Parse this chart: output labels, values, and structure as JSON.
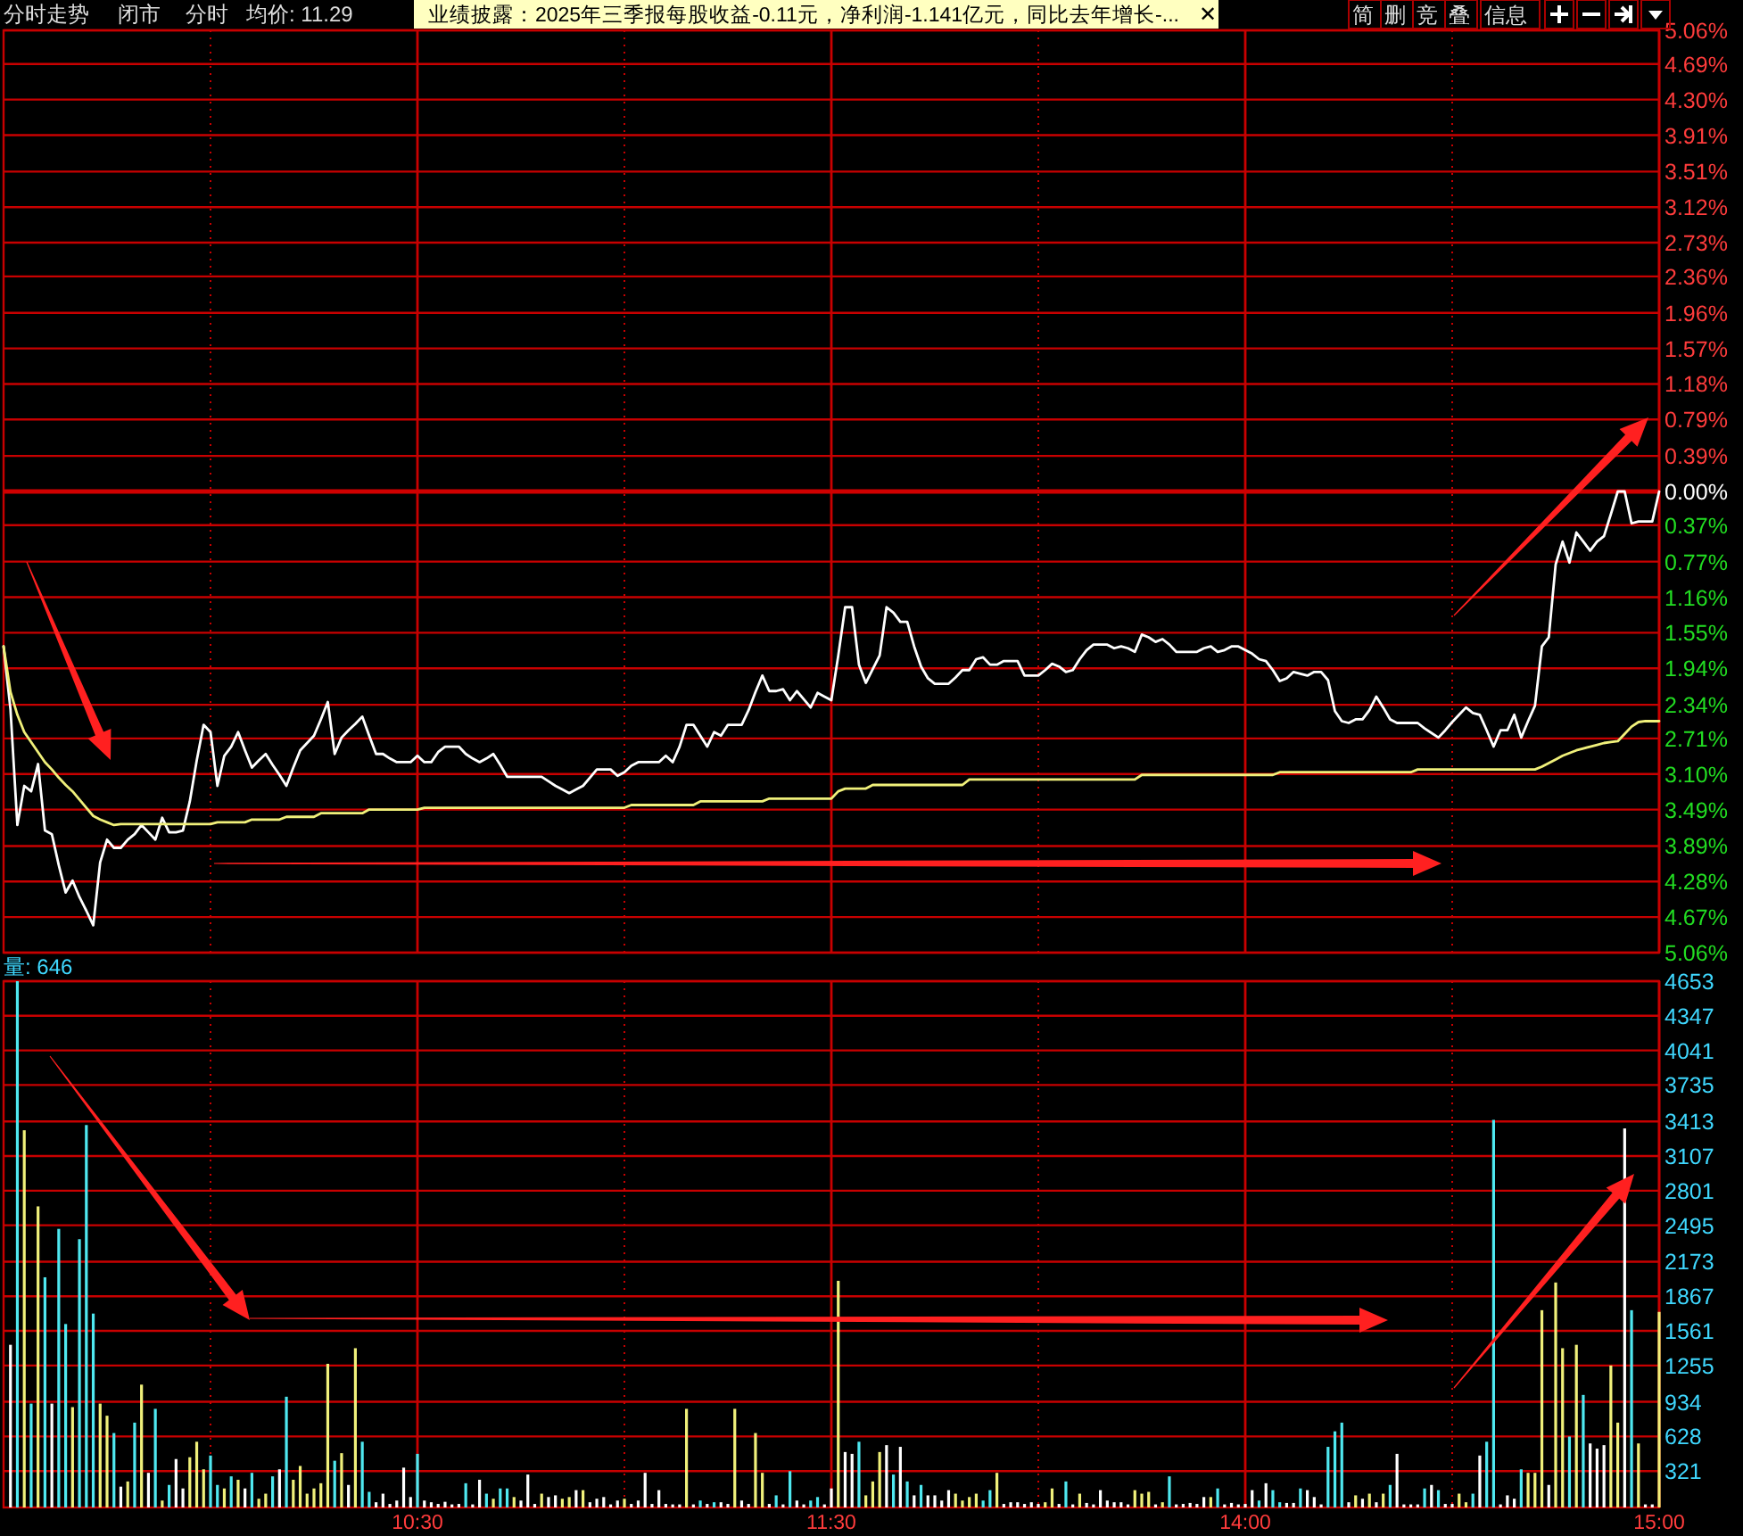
{
  "chart_data": [
    {
      "type": "line",
      "title": "分时走势",
      "annotations": [
        "闭市",
        "分时",
        "均价: 11.29",
        "业绩披露：2025年三季报每股收益-0.11元，净利润-1.141亿元，同比去年增长-...",
        "✕",
        "简",
        "删",
        "竞",
        "叠",
        "信息"
      ],
      "series": [
        {
          "color": "#ffffff",
          "values": [
            -1.7,
            -2.39,
            -3.66,
            -3.23,
            -3.29,
            -2.99,
            -3.72,
            -3.76,
            -4.1,
            -4.4,
            -4.27,
            -4.45,
            -4.6,
            -4.76,
            -4.07,
            -3.82,
            -3.91,
            -3.91,
            -3.82,
            -3.76,
            -3.66,
            -3.74,
            -3.82,
            -3.58,
            -3.74,
            -3.74,
            -3.72,
            -3.4,
            -2.95,
            -2.56,
            -2.64,
            -3.23,
            -2.9,
            -2.8,
            -2.64,
            -2.84,
            -3.03,
            -2.95,
            -2.88,
            -3.0,
            -3.11,
            -3.23,
            -3.03,
            -2.84,
            -2.76,
            -2.68,
            -2.5,
            -2.31,
            -2.88,
            -2.7,
            -2.62,
            -2.55,
            -2.47,
            -2.68,
            -2.88,
            -2.88,
            -2.93,
            -2.97,
            -2.97,
            -2.97,
            -2.9,
            -2.97,
            -2.97,
            -2.86,
            -2.8,
            -2.8,
            -2.8,
            -2.88,
            -2.93,
            -2.97,
            -2.93,
            -2.88,
            -3.0,
            -3.13,
            -3.13,
            -3.13,
            -3.13,
            -3.13,
            -3.13,
            -3.18,
            -3.23,
            -3.27,
            -3.31,
            -3.27,
            -3.23,
            -3.14,
            -3.05,
            -3.05,
            -3.05,
            -3.12,
            -3.08,
            -3.01,
            -2.97,
            -2.97,
            -2.97,
            -2.97,
            -2.9,
            -2.97,
            -2.8,
            -2.56,
            -2.56,
            -2.68,
            -2.8,
            -2.64,
            -2.68,
            -2.56,
            -2.56,
            -2.56,
            -2.4,
            -2.2,
            -2.02,
            -2.19,
            -2.19,
            -2.17,
            -2.29,
            -2.19,
            -2.28,
            -2.37,
            -2.21,
            -2.25,
            -2.29,
            -1.8,
            -1.27,
            -1.27,
            -1.9,
            -2.1,
            -1.95,
            -1.8,
            -1.27,
            -1.33,
            -1.43,
            -1.43,
            -1.7,
            -1.92,
            -2.05,
            -2.11,
            -2.11,
            -2.11,
            -2.04,
            -1.96,
            -1.96,
            -1.84,
            -1.82,
            -1.9,
            -1.9,
            -1.86,
            -1.86,
            -1.86,
            -2.02,
            -2.02,
            -2.02,
            -1.96,
            -1.89,
            -1.92,
            -1.98,
            -1.96,
            -1.84,
            -1.74,
            -1.68,
            -1.68,
            -1.68,
            -1.72,
            -1.7,
            -1.72,
            -1.76,
            -1.57,
            -1.6,
            -1.65,
            -1.62,
            -1.68,
            -1.76,
            -1.76,
            -1.76,
            -1.76,
            -1.72,
            -1.7,
            -1.76,
            -1.74,
            -1.7,
            -1.7,
            -1.74,
            -1.78,
            -1.84,
            -1.86,
            -1.96,
            -2.08,
            -2.05,
            -1.98,
            -2.0,
            -2.02,
            -1.98,
            -1.98,
            -2.07,
            -2.41,
            -2.52,
            -2.54,
            -2.5,
            -2.5,
            -2.4,
            -2.25,
            -2.37,
            -2.5,
            -2.54,
            -2.54,
            -2.54,
            -2.54,
            -2.6,
            -2.65,
            -2.7,
            -2.62,
            -2.53,
            -2.45,
            -2.37,
            -2.43,
            -2.45,
            -2.62,
            -2.8,
            -2.62,
            -2.62,
            -2.45,
            -2.7,
            -2.52,
            -2.35,
            -1.7,
            -1.6,
            -0.8,
            -0.55,
            -0.78,
            -0.45,
            -0.55,
            -0.65,
            -0.55,
            -0.49,
            -0.25,
            0,
            0,
            -0.35,
            -0.33,
            -0.33,
            -0.33,
            0
          ]
        },
        {
          "color": "#f0f07a",
          "values": [
            -1.7,
            -2.2,
            -2.45,
            -2.64,
            -2.75,
            -2.86,
            -2.97,
            -3.05,
            -3.14,
            -3.22,
            -3.29,
            -3.38,
            -3.47,
            -3.56,
            -3.6,
            -3.63,
            -3.66,
            -3.65,
            -3.65,
            -3.65,
            -3.65,
            -3.65,
            -3.65,
            -3.65,
            -3.65,
            -3.65,
            -3.65,
            -3.65,
            -3.65,
            -3.65,
            -3.65,
            -3.63,
            -3.63,
            -3.63,
            -3.63,
            -3.63,
            -3.6,
            -3.6,
            -3.6,
            -3.6,
            -3.6,
            -3.57,
            -3.57,
            -3.57,
            -3.57,
            -3.57,
            -3.53,
            -3.53,
            -3.53,
            -3.53,
            -3.53,
            -3.53,
            -3.53,
            -3.49,
            -3.49,
            -3.49,
            -3.49,
            -3.49,
            -3.49,
            -3.49,
            -3.49,
            -3.47,
            -3.47,
            -3.47,
            -3.47,
            -3.47,
            -3.47,
            -3.47,
            -3.47,
            -3.47,
            -3.47,
            -3.47,
            -3.47,
            -3.47,
            -3.47,
            -3.47,
            -3.47,
            -3.47,
            -3.47,
            -3.47,
            -3.47,
            -3.47,
            -3.47,
            -3.47,
            -3.47,
            -3.47,
            -3.47,
            -3.47,
            -3.47,
            -3.47,
            -3.47,
            -3.44,
            -3.44,
            -3.44,
            -3.44,
            -3.44,
            -3.44,
            -3.44,
            -3.44,
            -3.44,
            -3.44,
            -3.4,
            -3.4,
            -3.4,
            -3.4,
            -3.4,
            -3.4,
            -3.4,
            -3.4,
            -3.4,
            -3.4,
            -3.37,
            -3.37,
            -3.37,
            -3.37,
            -3.37,
            -3.37,
            -3.37,
            -3.37,
            -3.37,
            -3.37,
            -3.29,
            -3.26,
            -3.26,
            -3.26,
            -3.26,
            -3.22,
            -3.22,
            -3.22,
            -3.22,
            -3.22,
            -3.22,
            -3.22,
            -3.22,
            -3.22,
            -3.22,
            -3.22,
            -3.22,
            -3.22,
            -3.22,
            -3.16,
            -3.16,
            -3.16,
            -3.16,
            -3.16,
            -3.16,
            -3.16,
            -3.16,
            -3.16,
            -3.16,
            -3.16,
            -3.16,
            -3.16,
            -3.16,
            -3.16,
            -3.16,
            -3.16,
            -3.16,
            -3.16,
            -3.16,
            -3.16,
            -3.16,
            -3.16,
            -3.16,
            -3.16,
            -3.11,
            -3.11,
            -3.11,
            -3.11,
            -3.11,
            -3.11,
            -3.11,
            -3.11,
            -3.11,
            -3.11,
            -3.11,
            -3.11,
            -3.11,
            -3.11,
            -3.11,
            -3.11,
            -3.11,
            -3.11,
            -3.11,
            -3.11,
            -3.08,
            -3.08,
            -3.08,
            -3.08,
            -3.08,
            -3.08,
            -3.08,
            -3.08,
            -3.08,
            -3.08,
            -3.08,
            -3.08,
            -3.08,
            -3.08,
            -3.08,
            -3.08,
            -3.08,
            -3.08,
            -3.08,
            -3.08,
            -3.05,
            -3.05,
            -3.05,
            -3.05,
            -3.05,
            -3.05,
            -3.05,
            -3.05,
            -3.05,
            -3.05,
            -3.05,
            -3.05,
            -3.05,
            -3.05,
            -3.05,
            -3.05,
            -3.05,
            -3.05,
            -3.02,
            -2.98,
            -2.94,
            -2.9,
            -2.87,
            -2.84,
            -2.82,
            -2.8,
            -2.78,
            -2.76,
            -2.75,
            -2.74,
            -2.66,
            -2.58,
            -2.53,
            -2.52,
            -2.52,
            -2.52
          ]
        }
      ],
      "categories": [
        null,
        null,
        null,
        null,
        null,
        null,
        null,
        null,
        null,
        null,
        null,
        null,
        null,
        null,
        null,
        null,
        null,
        null,
        null,
        null,
        null,
        null,
        null,
        null,
        null,
        null,
        null,
        null,
        null,
        null,
        null,
        null,
        null,
        null,
        null,
        null,
        null,
        null,
        null,
        null,
        null,
        null,
        null,
        null,
        null,
        null,
        null,
        null,
        null,
        null,
        null,
        null,
        null,
        null,
        null,
        null,
        null,
        null,
        null,
        null,
        null,
        null,
        null,
        null,
        null,
        null,
        null,
        null,
        null,
        null,
        null,
        null,
        null,
        null,
        null,
        null,
        null,
        null,
        null,
        null,
        null,
        null,
        null,
        null,
        null,
        null,
        null,
        null,
        null,
        null,
        null,
        null,
        null,
        null,
        null,
        null,
        null,
        null,
        null,
        null,
        null,
        null,
        null,
        null,
        null,
        null,
        null,
        null,
        null,
        null,
        null,
        null,
        null,
        null,
        null,
        null,
        null,
        null,
        null,
        null,
        null,
        null,
        null,
        null,
        null,
        null,
        null,
        null,
        null,
        null,
        null,
        null,
        null,
        null,
        null,
        null,
        null,
        null,
        null,
        null,
        null,
        null,
        null,
        null,
        null,
        null,
        null,
        null,
        null,
        null,
        null,
        null,
        null,
        null,
        null,
        null,
        null,
        null,
        null,
        null,
        null,
        null,
        null,
        null,
        null,
        null,
        null,
        null,
        null,
        null,
        null,
        null,
        null,
        null,
        null,
        null,
        null,
        null,
        null,
        null,
        null,
        null,
        null,
        null,
        null,
        null,
        null,
        null,
        null,
        null,
        null,
        null,
        null,
        null,
        null,
        null,
        null,
        null,
        null,
        null,
        null,
        null,
        null,
        null,
        null,
        null,
        null,
        null,
        null,
        null,
        null,
        null,
        null,
        null,
        null,
        null,
        null,
        null,
        null,
        null,
        null,
        null,
        null,
        null,
        null,
        null,
        null,
        null,
        null,
        null,
        null,
        null,
        null,
        null,
        null,
        null,
        null,
        null,
        null,
        null,
        null
      ],
      "ylim": [
        -5.06,
        5.06
      ],
      "yticks": [
        {
          "value": 5.06,
          "label": "5.06%"
        },
        {
          "value": 4.69,
          "label": "4.69%"
        },
        {
          "value": 4.3,
          "label": "4.30%"
        },
        {
          "value": 3.91,
          "label": "3.91%"
        },
        {
          "value": 3.51,
          "label": "3.51%"
        },
        {
          "value": 3.12,
          "label": "3.12%"
        },
        {
          "value": 2.73,
          "label": "2.73%"
        },
        {
          "value": 2.36,
          "label": "2.36%"
        },
        {
          "value": 1.96,
          "label": "1.96%"
        },
        {
          "value": 1.57,
          "label": "1.57%"
        },
        {
          "value": 1.18,
          "label": "1.18%"
        },
        {
          "value": 0.79,
          "label": "0.79%"
        },
        {
          "value": 0.39,
          "label": "0.39%"
        },
        {
          "value": 0,
          "label": "0.00%"
        },
        {
          "value": -0.37,
          "label": "0.37%"
        },
        {
          "value": -0.77,
          "label": "0.77%"
        },
        {
          "value": -1.16,
          "label": "1.16%"
        },
        {
          "value": -1.55,
          "label": "1.55%"
        },
        {
          "value": -1.94,
          "label": "1.94%"
        },
        {
          "value": -2.34,
          "label": "2.34%"
        },
        {
          "value": -2.71,
          "label": "2.71%"
        },
        {
          "value": -3.1,
          "label": "3.10%"
        },
        {
          "value": -3.49,
          "label": "3.49%"
        },
        {
          "value": -3.89,
          "label": "3.89%"
        },
        {
          "value": -4.28,
          "label": "4.28%"
        },
        {
          "value": -4.67,
          "label": "4.67%"
        },
        {
          "value": -5.06,
          "label": "5.06%"
        }
      ],
      "ref_lines": [
        {
          "axis": "y",
          "value": 0,
          "color": "#d00000"
        }
      ],
      "grid": true,
      "tick_labels": "y"
    },
    {
      "type": "bar",
      "title": "量: 646",
      "categories": [
        null,
        null,
        null,
        null,
        null,
        null,
        null,
        null,
        null,
        null,
        null,
        null,
        null,
        null,
        null,
        null,
        null,
        null,
        null,
        null,
        null,
        null,
        null,
        null,
        null,
        null,
        null,
        null,
        null,
        null,
        null,
        null,
        null,
        null,
        null,
        null,
        null,
        null,
        null,
        null,
        null,
        null,
        null,
        null,
        null,
        null,
        null,
        null,
        null,
        null,
        null,
        null,
        null,
        null,
        null,
        null,
        null,
        null,
        null,
        null,
        "10:30",
        null,
        null,
        null,
        null,
        null,
        null,
        null,
        null,
        null,
        null,
        null,
        null,
        null,
        null,
        null,
        null,
        null,
        null,
        null,
        null,
        null,
        null,
        null,
        null,
        null,
        null,
        null,
        null,
        null,
        null,
        null,
        null,
        null,
        null,
        null,
        null,
        null,
        null,
        null,
        null,
        null,
        null,
        null,
        null,
        null,
        null,
        null,
        null,
        null,
        null,
        null,
        null,
        null,
        null,
        null,
        null,
        null,
        null,
        null,
        "11:30",
        null,
        null,
        null,
        null,
        null,
        null,
        null,
        null,
        null,
        null,
        null,
        null,
        null,
        null,
        null,
        null,
        null,
        null,
        null,
        null,
        null,
        null,
        null,
        null,
        null,
        null,
        null,
        null,
        null,
        null,
        null,
        null,
        null,
        null,
        null,
        null,
        null,
        null,
        null,
        null,
        null,
        null,
        null,
        null,
        null,
        null,
        null,
        null,
        null,
        null,
        null,
        null,
        null,
        null,
        null,
        null,
        null,
        null,
        null,
        "14:00",
        null,
        null,
        null,
        null,
        null,
        null,
        null,
        null,
        null,
        null,
        null,
        null,
        null,
        null,
        null,
        null,
        null,
        null,
        null,
        null,
        null,
        null,
        null,
        null,
        null,
        null,
        null,
        null,
        null,
        null,
        null,
        null,
        null,
        null,
        null,
        null,
        null,
        null,
        null,
        null,
        null,
        null,
        null,
        null,
        null,
        null,
        null,
        null,
        null,
        null,
        null,
        null,
        null,
        null,
        null,
        null,
        null,
        null,
        null,
        "15:00"
      ],
      "values": [
        null,
        1438,
        4653,
        3335,
        918,
        2662,
        2035,
        918,
        2463,
        1622,
        887,
        2372,
        3381,
        1714,
        918,
        811,
        658,
        184,
        230,
        750,
        1086,
        306,
        872,
        61,
        199,
        428,
        168,
        444,
        581,
        337,
        459,
        199,
        168,
        275,
        245,
        168,
        306,
        77,
        122,
        275,
        337,
        979,
        245,
        367,
        122,
        168,
        214,
        1270,
        413,
        480,
        199,
        1408,
        581,
        138,
        46,
        122,
        31,
        61,
        352,
        92,
        474,
        61,
        46,
        31,
        50,
        27,
        31,
        214,
        27,
        245,
        122,
        77,
        168,
        168,
        92,
        61,
        291,
        31,
        122,
        92,
        107,
        77,
        92,
        153,
        153,
        46,
        77,
        92,
        27,
        61,
        77,
        31,
        61,
        306,
        31,
        153,
        31,
        27,
        27,
        872,
        27,
        61,
        31,
        46,
        46,
        31,
        872,
        61,
        31,
        658,
        306,
        31,
        107,
        27,
        321,
        61,
        27,
        61,
        92,
        27,
        168,
        2004,
        490,
        474,
        581,
        107,
        230,
        490,
        551,
        291,
        536,
        230,
        107,
        199,
        107,
        107,
        61,
        153,
        122,
        61,
        92,
        122,
        61,
        153,
        306,
        31,
        46,
        46,
        31,
        46,
        31,
        46,
        168,
        31,
        230,
        27,
        122,
        40,
        27,
        153,
        61,
        46,
        46,
        27,
        153,
        122,
        138,
        27,
        46,
        275,
        27,
        31,
        40,
        31,
        92,
        92,
        168,
        27,
        40,
        27,
        31,
        153,
        61,
        214,
        153,
        46,
        40,
        40,
        168,
        153,
        92,
        27,
        536,
        673,
        750,
        46,
        107,
        77,
        122,
        46,
        122,
        199,
        474,
        27,
        27,
        27,
        168,
        199,
        153,
        31,
        31,
        122,
        46,
        122,
        459,
        581,
        3427,
        27,
        107,
        77,
        337,
        306,
        306,
        1744,
        199,
        1989,
        1408,
        627,
        1438,
        995,
        566,
        520,
        551,
        1255,
        750,
        3351,
        1744,
        566,
        27,
        27,
        1729
      ],
      "colors": [
        null,
        "#ffffff",
        "#4fe8f0",
        "#f0f07a",
        "#4fe8f0",
        "#f0f07a",
        "#4fe8f0",
        "#ffffff",
        "#4fe8f0",
        "#4fe8f0",
        "#f0f07a",
        "#4fe8f0",
        "#4fe8f0",
        "#4fe8f0",
        "#f0f07a",
        "#f0f07a",
        "#4fe8f0",
        "#ffffff",
        "#f0f07a",
        "#4fe8f0",
        "#f0f07a",
        "#ffffff",
        "#4fe8f0",
        "#f0f07a",
        "#4fe8f0",
        "#ffffff",
        "#ffffff",
        "#f0f07a",
        "#f0f07a",
        "#f0f07a",
        "#4fe8f0",
        "#4fe8f0",
        "#f0f07a",
        "#4fe8f0",
        "#f0f07a",
        "#ffffff",
        "#4fe8f0",
        "#f0f07a",
        "#f0f07a",
        "#4fe8f0",
        "#ffffff",
        "#4fe8f0",
        "#f0f07a",
        "#f0f07a",
        "#f0f07a",
        "#f0f07a",
        "#f0f07a",
        "#f0f07a",
        "#4fe8f0",
        "#f0f07a",
        "#ffffff",
        "#f0f07a",
        "#4fe8f0",
        "#4fe8f0",
        "#ffffff",
        "#ffffff",
        "#ffffff",
        "#ffffff",
        "#ffffff",
        "#ffffff",
        "#4fe8f0",
        "#ffffff",
        "#ffffff",
        "#ffffff",
        "#ffffff",
        "#ffffff",
        "#ffffff",
        "#4fe8f0",
        "#ffffff",
        "#ffffff",
        "#4fe8f0",
        "#f0f07a",
        "#4fe8f0",
        "#4fe8f0",
        "#f0f07a",
        "#ffffff",
        "#ffffff",
        "#ffffff",
        "#f0f07a",
        "#ffffff",
        "#ffffff",
        "#f0f07a",
        "#f0f07a",
        "#ffffff",
        "#f0f07a",
        "#ffffff",
        "#ffffff",
        "#ffffff",
        "#ffffff",
        "#ffffff",
        "#f0f07a",
        "#ffffff",
        "#ffffff",
        "#ffffff",
        "#ffffff",
        "#ffffff",
        "#ffffff",
        "#ffffff",
        "#ffffff",
        "#f0f07a",
        "#ffffff",
        "#4fe8f0",
        "#ffffff",
        "#4fe8f0",
        "#ffffff",
        "#ffffff",
        "#f0f07a",
        "#ffffff",
        "#ffffff",
        "#f0f07a",
        "#f0f07a",
        "#ffffff",
        "#4fe8f0",
        "#ffffff",
        "#4fe8f0",
        "#ffffff",
        "#ffffff",
        "#4fe8f0",
        "#4fe8f0",
        "#ffffff",
        "#ffffff",
        "#f0f07a",
        "#ffffff",
        "#ffffff",
        "#4fe8f0",
        "#f0f07a",
        "#f0f07a",
        "#f0f07a",
        "#ffffff",
        "#4fe8f0",
        "#ffffff",
        "#4fe8f0",
        "#ffffff",
        "#4fe8f0",
        "#ffffff",
        "#ffffff",
        "#ffffff",
        "#ffffff",
        "#f0f07a",
        "#f0f07a",
        "#f0f07a",
        "#f0f07a",
        "#4fe8f0",
        "#4fe8f0",
        "#f0f07a",
        "#ffffff",
        "#ffffff",
        "#ffffff",
        "#ffffff",
        "#ffffff",
        "#ffffff",
        "#f0f07a",
        "#f0f07a",
        "#ffffff",
        "#4fe8f0",
        "#ffffff",
        "#f0f07a",
        "#ffffff",
        "#ffffff",
        "#ffffff",
        "#ffffff",
        "#ffffff",
        "#ffffff",
        "#ffffff",
        "#f0f07a",
        "#f0f07a",
        "#f0f07a",
        "#ffffff",
        "#f0f07a",
        "#4fe8f0",
        "#ffffff",
        "#ffffff",
        "#ffffff",
        "#ffffff",
        "#ffffff",
        "#f0f07a",
        "#4fe8f0",
        "#ffffff",
        "#ffffff",
        "#ffffff",
        "#ffffff",
        "#ffffff",
        "#4fe8f0",
        "#ffffff",
        "#4fe8f0",
        "#4fe8f0",
        "#ffffff",
        "#ffffff",
        "#4fe8f0",
        "#ffffff",
        "#ffffff",
        "#ffffff",
        "#4fe8f0",
        "#4fe8f0",
        "#4fe8f0",
        "#ffffff",
        "#f0f07a",
        "#ffffff",
        "#f0f07a",
        "#ffffff",
        "#f0f07a",
        "#4fe8f0",
        "#ffffff",
        "#ffffff",
        "#ffffff",
        "#ffffff",
        "#4fe8f0",
        "#ffffff",
        "#4fe8f0",
        "#ffffff",
        "#ffffff",
        "#f0f07a",
        "#f0f07a",
        "#4fe8f0",
        "#ffffff",
        "#4fe8f0",
        "#4fe8f0",
        "#ffffff",
        "#ffffff",
        "#ffffff",
        "#4fe8f0",
        "#f0f07a",
        "#f0f07a",
        "#f0f07a",
        "#ffffff",
        "#f0f07a",
        "#f0f07a",
        "#4fe8f0",
        "#f0f07a",
        "#4fe8f0",
        "#ffffff",
        "#ffffff",
        "#ffffff",
        "#f0f07a",
        "#f0f07a",
        "#ffffff",
        "#4fe8f0",
        "#f0f07a",
        "#ffffff",
        "#ffffff",
        "#f0f07a"
      ],
      "ylim": [
        0,
        4653
      ],
      "yticks": [
        321,
        628,
        934,
        1255,
        1561,
        1867,
        2173,
        2495,
        2801,
        3107,
        3413,
        3735,
        4041,
        4347,
        4653
      ],
      "grid": true
    }
  ]
}
